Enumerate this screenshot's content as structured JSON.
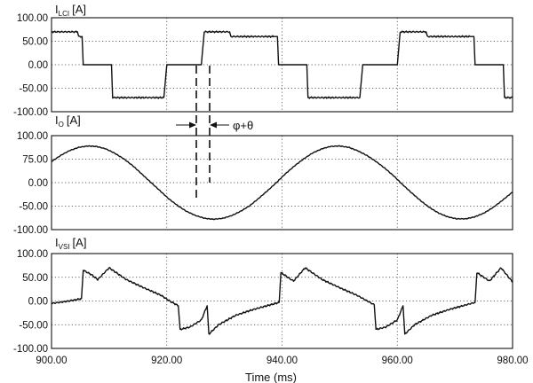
{
  "chart_data": [
    {
      "type": "line",
      "title": "I",
      "title_sub": "LCI",
      "title_unit": "[A]",
      "ylim": [
        -100,
        100
      ],
      "yticks": [
        "100.00",
        "50.00",
        "0.00",
        "-50.00",
        "-100.00"
      ],
      "xlim": [
        900,
        980
      ],
      "grid": true,
      "series": [
        {
          "x": [
            900,
            904.5,
            904.7,
            905.3,
            905.5,
            910.4,
            910.6,
            919.5,
            920.0,
            926.0,
            926.5,
            930.9,
            931.1,
            938.6,
            938.8,
            939.2,
            939.4,
            944.3,
            944.5,
            953.5,
            954.0,
            960.0,
            960.5,
            965.0,
            965.2,
            972.7,
            972.9,
            973.3,
            973.5,
            978.4,
            978.6,
            980
          ],
          "y": [
            70,
            70,
            60,
            60,
            0,
            0,
            -70,
            -70,
            0,
            0,
            70,
            70,
            60,
            60,
            60,
            60,
            0,
            0,
            -70,
            -70,
            0,
            0,
            70,
            70,
            60,
            60,
            60,
            60,
            0,
            0,
            -70,
            -70
          ]
        }
      ]
    },
    {
      "type": "line",
      "title": "I",
      "title_sub": "O",
      "title_unit": "[A]",
      "ylim": [
        -100,
        100
      ],
      "yticks": [
        "100.00",
        "75.00",
        "0.00",
        "-50.00",
        "-100.00"
      ],
      "xlim": [
        900,
        980
      ],
      "grid": true,
      "series": [
        {
          "x": [
            900,
            901.6,
            903.1,
            904.7,
            906.3,
            907.8,
            909.4,
            910.9,
            912.5,
            914.1,
            915.6,
            917.2,
            918.8,
            920.3,
            921.9,
            923.4,
            925.0,
            926.6,
            928.1,
            929.7,
            931.3,
            932.8,
            934.4,
            935.9,
            937.5,
            939.1,
            940.6,
            942.2,
            943.8,
            945.3,
            946.9,
            948.4,
            950.0,
            951.6,
            953.1,
            954.7,
            956.3,
            957.8,
            959.4,
            960.9,
            962.5,
            964.1,
            965.6,
            967.2,
            968.8,
            970.3,
            971.9,
            973.4,
            975.0,
            976.6,
            978.1,
            980
          ],
          "y": [
            45,
            58,
            68,
            75,
            78,
            77,
            72,
            63,
            51,
            36,
            19,
            1,
            -17,
            -34,
            -49,
            -61,
            -70,
            -76,
            -78,
            -76,
            -70,
            -61,
            -49,
            -34,
            -17,
            1,
            19,
            36,
            51,
            63,
            72,
            77,
            78,
            75,
            68,
            58,
            45,
            31,
            14,
            -4,
            -22,
            -39,
            -53,
            -65,
            -73,
            -77,
            -77,
            -73,
            -65,
            -53,
            -39,
            -20
          ]
        }
      ]
    },
    {
      "type": "line",
      "title": "I",
      "title_sub": "VSI",
      "title_unit": "[A]",
      "ylim": [
        -100,
        100
      ],
      "yticks": [
        "100.00",
        "50.00",
        "0.00",
        "-50.00",
        "-100.00"
      ],
      "xlim": [
        900,
        980
      ],
      "xticks": [
        "900.00",
        "920.00",
        "940.00",
        "960.00",
        "980.00"
      ],
      "xlabel": "Time (ms)",
      "grid": true,
      "series": [
        {
          "x": [
            900,
            902,
            904,
            905.2,
            905.5,
            907,
            908,
            910,
            913,
            916,
            919,
            920.5,
            922,
            922.3,
            924,
            926,
            927,
            927.3,
            929,
            932,
            935,
            938,
            939.5,
            939.8,
            941,
            942,
            944,
            947,
            950,
            953,
            954.5,
            956,
            956.3,
            958,
            960,
            961,
            961.3,
            963,
            966,
            969,
            972,
            973.5,
            973.8,
            975,
            976,
            978,
            980
          ],
          "y": [
            -5,
            -2,
            2,
            5,
            65,
            55,
            45,
            70,
            45,
            28,
            12,
            0,
            -10,
            -60,
            -55,
            -40,
            -10,
            -70,
            -50,
            -30,
            -18,
            -8,
            -3,
            60,
            50,
            42,
            70,
            45,
            28,
            12,
            2,
            -8,
            -60,
            -55,
            -40,
            -10,
            -70,
            -50,
            -30,
            -18,
            -8,
            -3,
            60,
            50,
            42,
            70,
            40
          ]
        }
      ]
    }
  ],
  "annotation": {
    "label": "φ+θ"
  }
}
